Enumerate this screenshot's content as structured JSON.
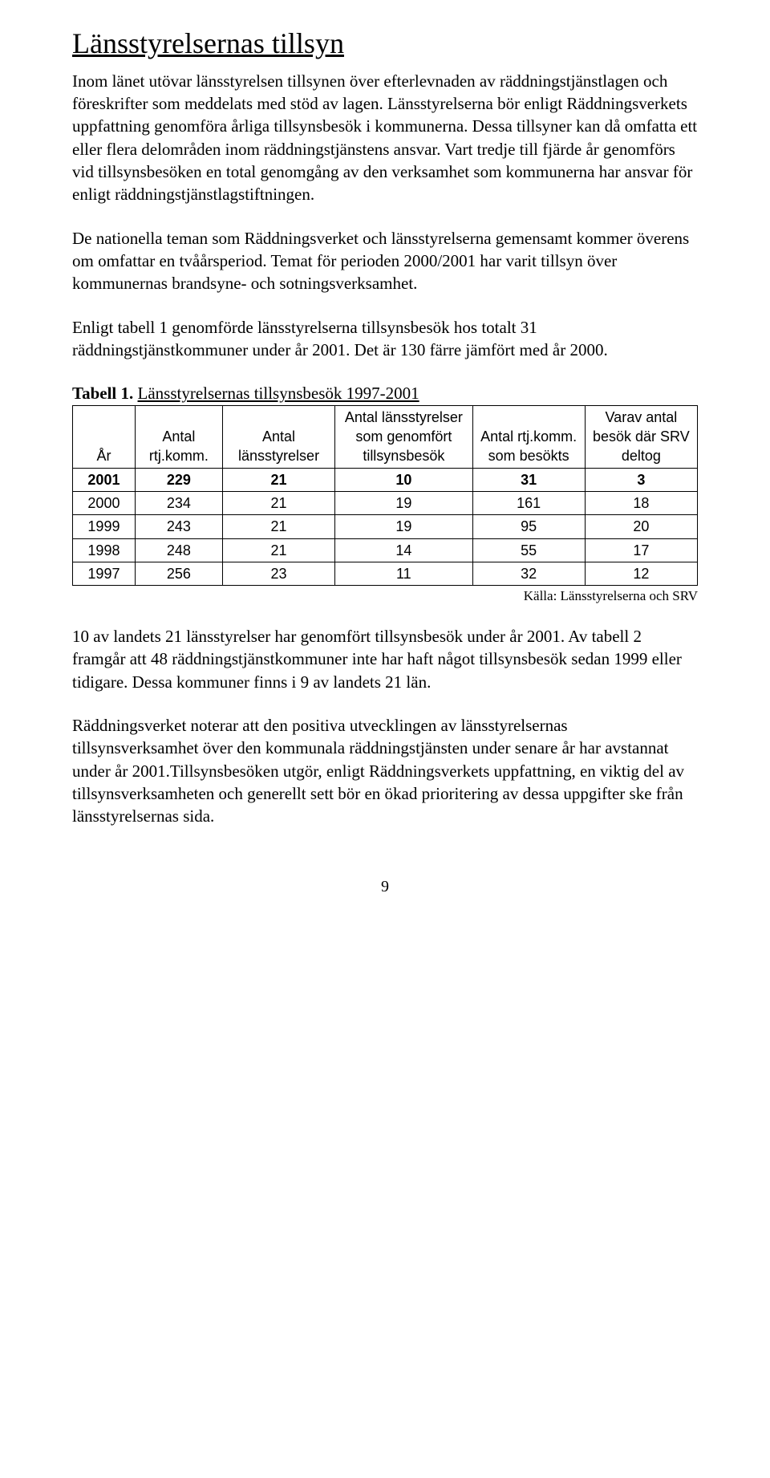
{
  "heading": "Länsstyrelsernas tillsyn",
  "para1": "Inom länet utövar länsstyrelsen tillsynen över efterlevnaden av räddningstjänstlagen och föreskrifter som meddelats med stöd av lagen. Länsstyrelserna bör enligt Räddningsverkets uppfattning genomföra årliga tillsynsbesök i kommunerna. Dessa tillsyner kan då omfatta ett eller flera delområden inom räddningstjänstens ansvar. Vart tredje till fjärde år genomförs vid tillsynsbesöken en total genomgång av den verksamhet som kommunerna har ansvar för enligt räddningstjänstlagstiftningen.",
  "para2": "De nationella teman som Räddningsverket och länsstyrelserna gemensamt kommer överens om omfattar en tvåårsperiod. Temat för perioden 2000/2001 har varit tillsyn över kommunernas brandsyne- och sotningsverksamhet.",
  "para3": "Enligt tabell 1 genomförde länsstyrelserna tillsynsbesök hos totalt 31 räddningstjänstkommuner under år 2001. Det är 130 färre jämfört med år 2000.",
  "tableLabel": "Tabell 1.",
  "tableTitle": "Länsstyrelsernas tillsynsbesök 1997-2001",
  "headers": {
    "h1": "År",
    "h2": "Antal rtj.komm.",
    "h3": "Antal länsstyrelser",
    "h4": "Antal länsstyrelser som genomfört tillsynsbesök",
    "h5": "Antal rtj.komm. som besökts",
    "h6": "Varav antal besök där SRV deltog"
  },
  "rows": [
    [
      "2001",
      "229",
      "21",
      "10",
      "31",
      "3"
    ],
    [
      "2000",
      "234",
      "21",
      "19",
      "161",
      "18"
    ],
    [
      "1999",
      "243",
      "21",
      "19",
      "95",
      "20"
    ],
    [
      "1998",
      "248",
      "21",
      "14",
      "55",
      "17"
    ],
    [
      "1997",
      "256",
      "23",
      "11",
      "32",
      "12"
    ]
  ],
  "source": "Källa: Länsstyrelserna och SRV",
  "para4": "10 av landets 21 länsstyrelser har genomfört tillsynsbesök under år 2001. Av tabell 2 framgår att 48 räddningstjänstkommuner inte har haft något tillsynsbesök sedan 1999 eller tidigare. Dessa kommuner finns i 9 av landets 21 län.",
  "para5": "Räddningsverket noterar att den positiva utvecklingen av länsstyrelsernas tillsynsverksamhet över den kommunala räddningstjänsten under senare år har avstannat under år 2001.Tillsynsbesöken utgör, enligt Räddningsverkets uppfattning, en viktig del av tillsynsverksamheten och generellt sett bör en ökad prioritering av dessa uppgifter ske från länsstyrelsernas sida.",
  "pageNumber": "9"
}
